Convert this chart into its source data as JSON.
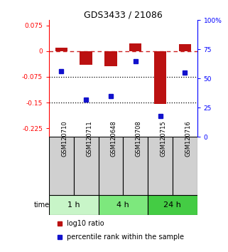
{
  "title": "GDS3433 / 21086",
  "samples": [
    "GSM120710",
    "GSM120711",
    "GSM120648",
    "GSM120708",
    "GSM120715",
    "GSM120716"
  ],
  "time_groups": [
    {
      "label": "1 h",
      "color": "#c8f5c8",
      "start": 0,
      "end": 2
    },
    {
      "label": "4 h",
      "color": "#7de87d",
      "start": 2,
      "end": 4
    },
    {
      "label": "24 h",
      "color": "#44cc44",
      "start": 4,
      "end": 6
    }
  ],
  "log10_ratio": [
    0.01,
    -0.04,
    -0.045,
    0.022,
    -0.155,
    0.02
  ],
  "percentile_rank": [
    56,
    32,
    35,
    65,
    18,
    55
  ],
  "ylim_left": [
    -0.25,
    0.09
  ],
  "ylim_right": [
    0,
    100
  ],
  "yticks_left": [
    0.075,
    0,
    -0.075,
    -0.15,
    -0.225
  ],
  "yticks_right": [
    100,
    75,
    50,
    25,
    0
  ],
  "bar_color": "#bb1111",
  "dot_color": "#1111cc",
  "zero_line_color": "#cc2222",
  "hline_color": "#000000",
  "hlines": [
    -0.075,
    -0.15
  ],
  "bar_width": 0.5,
  "sample_cell_color": "#d0d0d0"
}
